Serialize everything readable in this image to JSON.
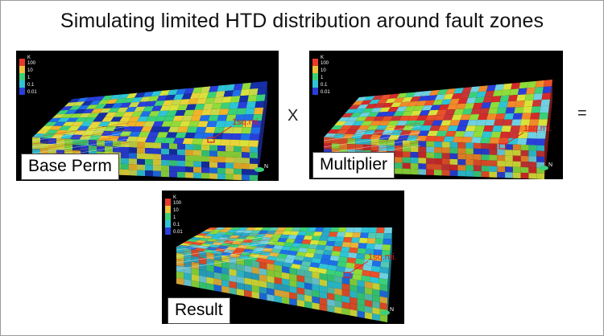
{
  "slide": {
    "title": "Simulating limited HTD distribution around fault zones",
    "operators": {
      "times": "X",
      "equals": "="
    }
  },
  "panels": [
    {
      "id": "base",
      "caption": "Base Perm",
      "annotation": "1sq.mi.",
      "legend": {
        "unit": "K",
        "ticks": [
          "100",
          "10",
          "1",
          "0.1",
          "0.01"
        ]
      },
      "north": "N",
      "palette": [
        "#2a3fd9",
        "#1f6fe8",
        "#2ec4d6",
        "#3ad07a",
        "#8fdc3a",
        "#d9e23a",
        "#e8d33a",
        "#f0b32a",
        "#1530a8",
        "#c8d84a"
      ]
    },
    {
      "id": "multiplier",
      "caption": "Multiplier",
      "annotation": "1sq.mi.",
      "legend": {
        "unit": "K",
        "ticks": [
          "100",
          "10",
          "1",
          "0.1",
          "0.01"
        ]
      },
      "north": "N",
      "palette": [
        "#d42a2a",
        "#e8512a",
        "#3ad07a",
        "#2ec4d6",
        "#8fdc3a",
        "#d9e23a",
        "#2a3fd9",
        "#f08a2a",
        "#6fd0e0",
        "#c93535"
      ]
    },
    {
      "id": "result",
      "caption": "Result",
      "annotation": "1sq.mi.",
      "legend": {
        "unit": "K",
        "ticks": [
          "100",
          "10",
          "1",
          "0.1",
          "0.01"
        ]
      },
      "north": "N",
      "palette": [
        "#2ec4d6",
        "#3ad07a",
        "#6fd0e0",
        "#8fdc3a",
        "#1f6fe8",
        "#d9e23a",
        "#e8b23a",
        "#2aa8c8",
        "#54c8b0",
        "#e8512a"
      ]
    }
  ]
}
